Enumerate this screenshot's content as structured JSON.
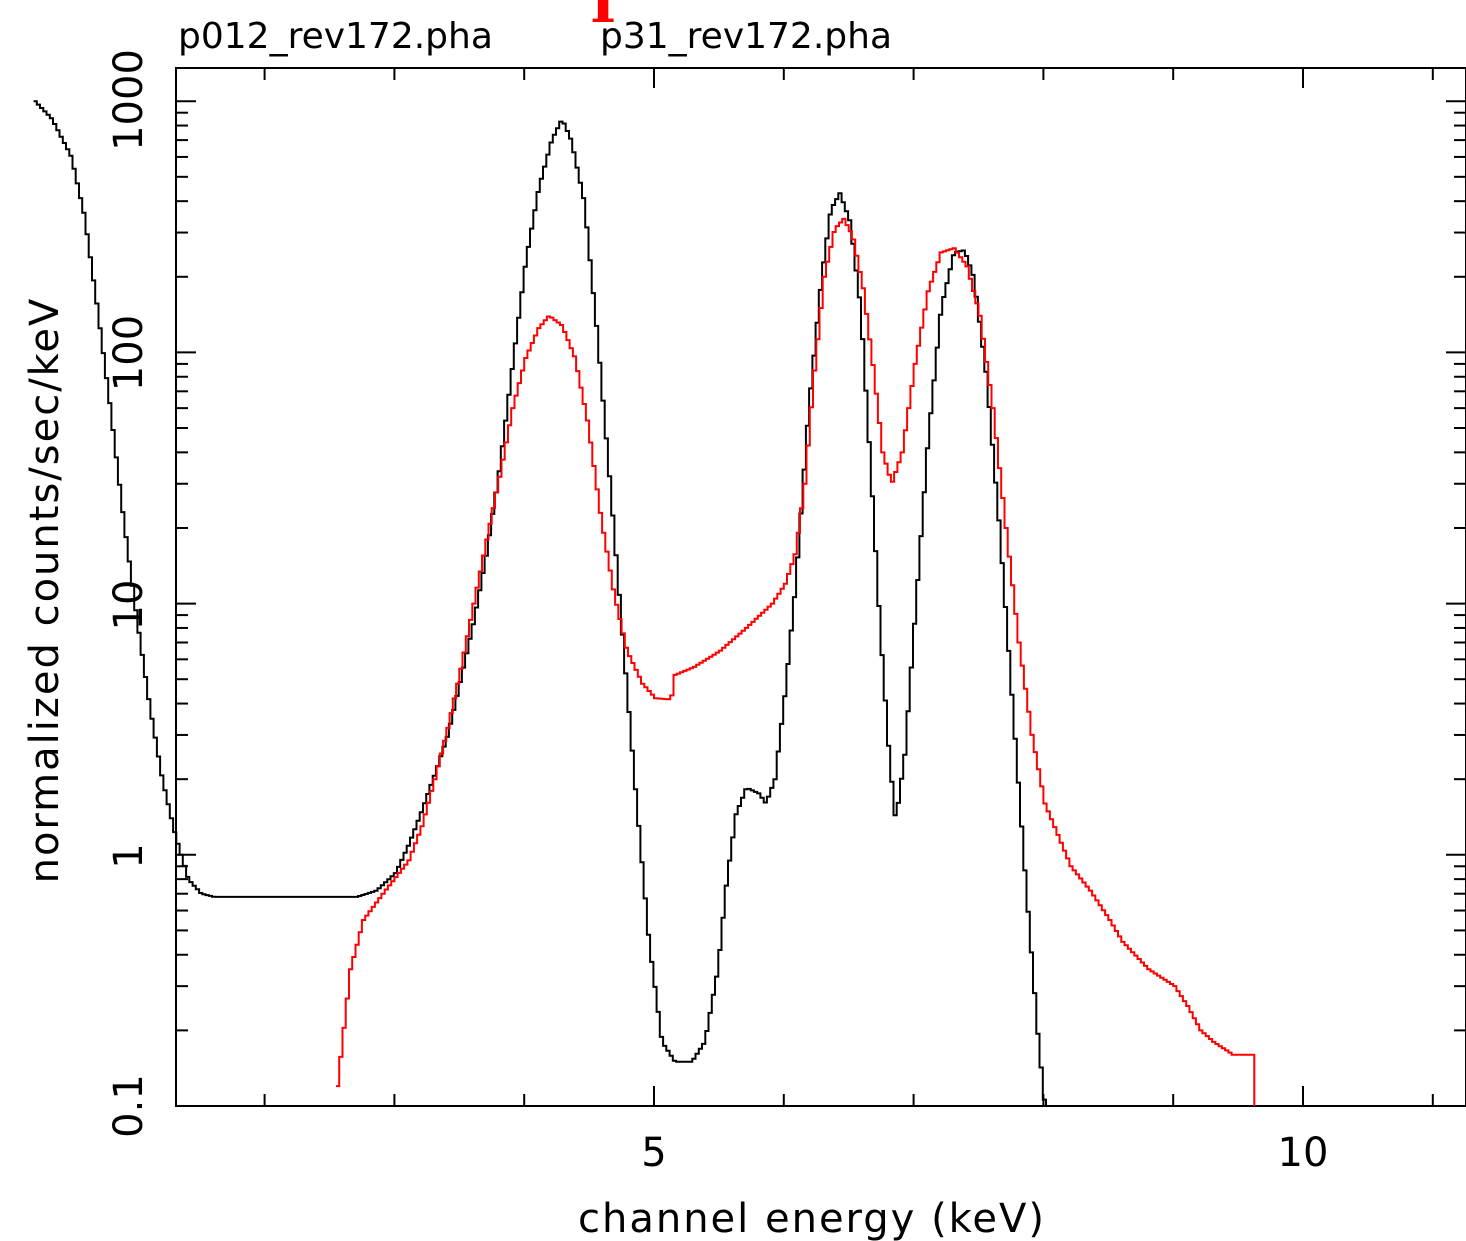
{
  "chart_data": {
    "type": "line",
    "title_left": "p012_rev172.pha",
    "title_right": "p31_rev172.pha",
    "title_mark": "I",
    "xlabel": "channel energy (keV)",
    "ylabel": "normalized counts/sec/keV",
    "yscale": "log",
    "xlim": [
      0.2,
      10.0
    ],
    "ylim": [
      0.1,
      1000
    ],
    "xticks": [
      5,
      10
    ],
    "xtick_labels": [
      "5",
      "10"
    ],
    "yticks": [
      0.1,
      1,
      10,
      100,
      1000
    ],
    "ytick_labels": [
      "0.1",
      "1",
      "10",
      "100",
      "1000"
    ],
    "grid": false,
    "colors": {
      "black": "#000000",
      "red": "#ff0000",
      "title_mark": "#ff0000"
    },
    "series": [
      {
        "name": "p012_rev172.pha",
        "color": "#000000",
        "points": [
          [
            0.22,
            1000
          ],
          [
            0.35,
            850
          ],
          [
            0.5,
            600
          ],
          [
            0.6,
            350
          ],
          [
            0.7,
            150
          ],
          [
            0.8,
            60
          ],
          [
            0.9,
            22
          ],
          [
            1.0,
            9
          ],
          [
            1.1,
            4
          ],
          [
            1.2,
            2
          ],
          [
            1.3,
            1.2
          ],
          [
            1.4,
            0.8
          ],
          [
            1.5,
            0.7
          ],
          [
            1.6,
            0.68
          ],
          [
            2.0,
            0.68
          ],
          [
            2.4,
            0.68
          ],
          [
            2.7,
            0.68
          ],
          [
            2.85,
            0.72
          ],
          [
            3.0,
            0.85
          ],
          [
            3.1,
            1.1
          ],
          [
            3.2,
            1.5
          ],
          [
            3.3,
            2.1
          ],
          [
            3.4,
            3.0
          ],
          [
            3.5,
            5.0
          ],
          [
            3.6,
            8.5
          ],
          [
            3.7,
            16
          ],
          [
            3.8,
            35
          ],
          [
            3.9,
            90
          ],
          [
            4.0,
            230
          ],
          [
            4.1,
            450
          ],
          [
            4.2,
            700
          ],
          [
            4.28,
            850
          ],
          [
            4.35,
            700
          ],
          [
            4.45,
            400
          ],
          [
            4.55,
            120
          ],
          [
            4.65,
            30
          ],
          [
            4.75,
            7
          ],
          [
            4.85,
            1.7
          ],
          [
            4.95,
            0.45
          ],
          [
            5.05,
            0.18
          ],
          [
            5.15,
            0.15
          ],
          [
            5.28,
            0.15
          ],
          [
            5.38,
            0.18
          ],
          [
            5.48,
            0.35
          ],
          [
            5.55,
            0.8
          ],
          [
            5.62,
            1.45
          ],
          [
            5.7,
            1.85
          ],
          [
            5.8,
            1.75
          ],
          [
            5.85,
            1.6
          ],
          [
            5.92,
            2.0
          ],
          [
            6.0,
            4.5
          ],
          [
            6.08,
            12
          ],
          [
            6.18,
            60
          ],
          [
            6.28,
            200
          ],
          [
            6.35,
            370
          ],
          [
            6.42,
            430
          ],
          [
            6.5,
            330
          ],
          [
            6.58,
            150
          ],
          [
            6.65,
            40
          ],
          [
            6.73,
            8
          ],
          [
            6.8,
            2.5
          ],
          [
            6.85,
            1.35
          ],
          [
            6.92,
            2.5
          ],
          [
            7.0,
            9
          ],
          [
            7.1,
            45
          ],
          [
            7.2,
            150
          ],
          [
            7.3,
            250
          ],
          [
            7.38,
            255
          ],
          [
            7.45,
            200
          ],
          [
            7.55,
            80
          ],
          [
            7.65,
            20
          ],
          [
            7.75,
            4
          ],
          [
            7.85,
            0.8
          ],
          [
            7.95,
            0.18
          ],
          [
            8.0,
            0.1
          ]
        ]
      },
      {
        "name": "p31_rev172.pha",
        "color": "#ff0000",
        "points": [
          [
            2.55,
            0.12
          ],
          [
            2.65,
            0.35
          ],
          [
            2.75,
            0.55
          ],
          [
            2.9,
            0.7
          ],
          [
            3.1,
            0.95
          ],
          [
            3.2,
            1.3
          ],
          [
            3.3,
            2.0
          ],
          [
            3.4,
            3.2
          ],
          [
            3.5,
            5.5
          ],
          [
            3.6,
            10
          ],
          [
            3.7,
            18
          ],
          [
            3.8,
            32
          ],
          [
            3.9,
            60
          ],
          [
            4.0,
            95
          ],
          [
            4.1,
            125
          ],
          [
            4.18,
            140
          ],
          [
            4.28,
            128
          ],
          [
            4.38,
            95
          ],
          [
            4.48,
            52
          ],
          [
            4.58,
            22
          ],
          [
            4.68,
            11
          ],
          [
            4.78,
            6.5
          ],
          [
            4.9,
            4.8
          ],
          [
            5.0,
            4.2
          ],
          [
            5.12,
            4.15
          ],
          [
            5.15,
            5.2
          ],
          [
            5.3,
            5.6
          ],
          [
            5.5,
            6.5
          ],
          [
            5.7,
            8
          ],
          [
            5.9,
            10
          ],
          [
            6.0,
            12
          ],
          [
            6.08,
            16
          ],
          [
            6.15,
            30
          ],
          [
            6.22,
            80
          ],
          [
            6.3,
            200
          ],
          [
            6.38,
            310
          ],
          [
            6.45,
            340
          ],
          [
            6.52,
            290
          ],
          [
            6.6,
            180
          ],
          [
            6.68,
            85
          ],
          [
            6.75,
            40
          ],
          [
            6.82,
            30
          ],
          [
            6.9,
            40
          ],
          [
            7.0,
            90
          ],
          [
            7.1,
            175
          ],
          [
            7.2,
            250
          ],
          [
            7.3,
            260
          ],
          [
            7.4,
            220
          ],
          [
            7.5,
            140
          ],
          [
            7.6,
            60
          ],
          [
            7.7,
            20
          ],
          [
            7.8,
            7
          ],
          [
            7.9,
            3
          ],
          [
            8.0,
            1.6
          ],
          [
            8.1,
            1.2
          ],
          [
            8.2,
            0.9
          ],
          [
            8.35,
            0.72
          ],
          [
            8.5,
            0.55
          ],
          [
            8.6,
            0.45
          ],
          [
            8.8,
            0.35
          ],
          [
            9.0,
            0.3
          ],
          [
            9.1,
            0.25
          ],
          [
            9.2,
            0.2
          ],
          [
            9.3,
            0.18
          ],
          [
            9.45,
            0.16
          ],
          [
            9.6,
            0.16
          ],
          [
            9.6,
            0.1
          ]
        ]
      }
    ]
  }
}
